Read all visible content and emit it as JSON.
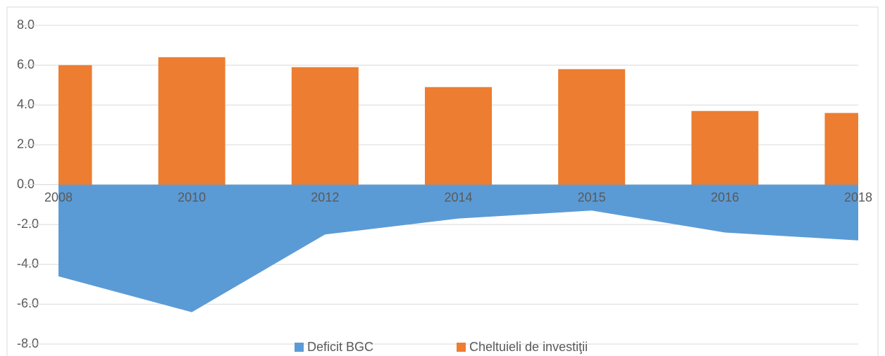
{
  "chart_data": {
    "type": "combo",
    "categories": [
      "2008",
      "2010",
      "2012",
      "2014",
      "2015",
      "2016",
      "2018"
    ],
    "series": [
      {
        "name": "Deficit BGC",
        "type": "area",
        "color": "#5b9bd5",
        "values": [
          -4.6,
          -6.4,
          -2.5,
          -1.7,
          -1.3,
          -2.4,
          -2.8
        ]
      },
      {
        "name": "Cheltuieli de investiţii",
        "type": "bar",
        "color": "#ed7d31",
        "values": [
          6.0,
          6.4,
          5.9,
          4.9,
          5.8,
          3.7,
          3.6
        ]
      }
    ],
    "ylim": [
      -8,
      8
    ],
    "yticks": [
      {
        "value": -8,
        "label": "-8.0"
      },
      {
        "value": -6,
        "label": "-6.0"
      },
      {
        "value": -4,
        "label": "-4.0"
      },
      {
        "value": -2,
        "label": "-2.0"
      },
      {
        "value": 0,
        "label": "0.0"
      },
      {
        "value": 2,
        "label": "2.0"
      },
      {
        "value": 4,
        "label": "4.0"
      },
      {
        "value": 6,
        "label": "6.0"
      },
      {
        "value": 8,
        "label": "8.0"
      }
    ],
    "grid": true,
    "legend": "bottom"
  }
}
